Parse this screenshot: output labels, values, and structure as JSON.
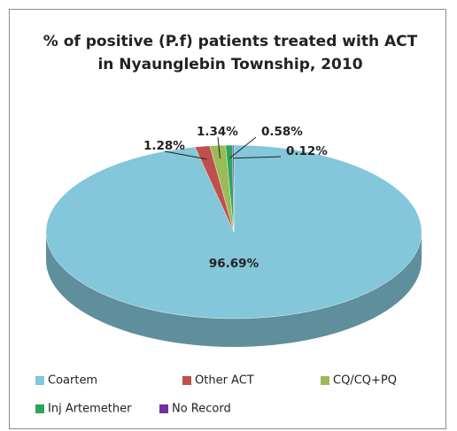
{
  "chart_data": {
    "type": "pie3d",
    "title": "% of positive (P.f) patients treated with ACT in Nyaunglebin Township, 2010",
    "categories": [
      "Coartem",
      "Other ACT",
      "CQ/CQ+PQ",
      "Inj Artemether",
      "No Record"
    ],
    "values": [
      96.69,
      1.28,
      1.34,
      0.58,
      0.12
    ],
    "value_labels": [
      "96.69%",
      "1.28%",
      "1.34%",
      "0.58%",
      "0.12%"
    ],
    "colors": [
      "#84c6da",
      "#c0504d",
      "#9bbb59",
      "#2ca55a",
      "#7030a0"
    ],
    "legend": "bottom"
  }
}
